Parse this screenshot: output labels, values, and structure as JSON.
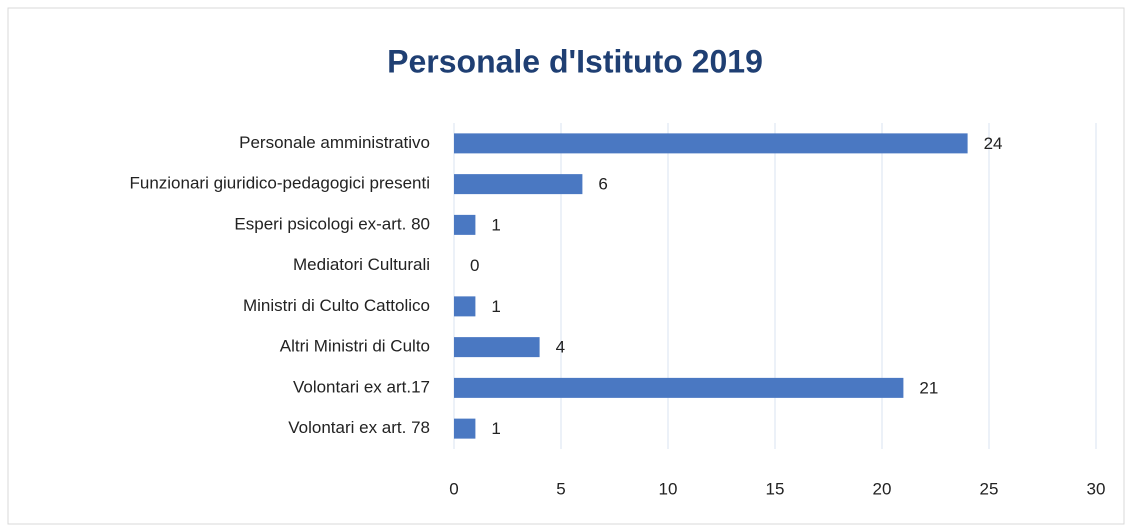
{
  "chart_data": {
    "type": "bar",
    "orientation": "horizontal",
    "title": "Personale d'Istituto 2019",
    "categories": [
      "Personale amministrativo",
      "Funzionari giuridico-pedagogici presenti",
      "Esperi psicologi ex-art. 80",
      "Mediatori Culturali",
      "Ministri di Culto Cattolico",
      "Altri Ministri di Culto",
      "Volontari ex art.17",
      "Volontari ex art. 78"
    ],
    "values": [
      24,
      6,
      1,
      0,
      1,
      4,
      21,
      1
    ],
    "color": "#4a78c2",
    "xlim": [
      0,
      30
    ],
    "xticks": [
      0,
      5,
      10,
      15,
      20,
      25,
      30
    ],
    "grid": true,
    "data_labels": true
  }
}
